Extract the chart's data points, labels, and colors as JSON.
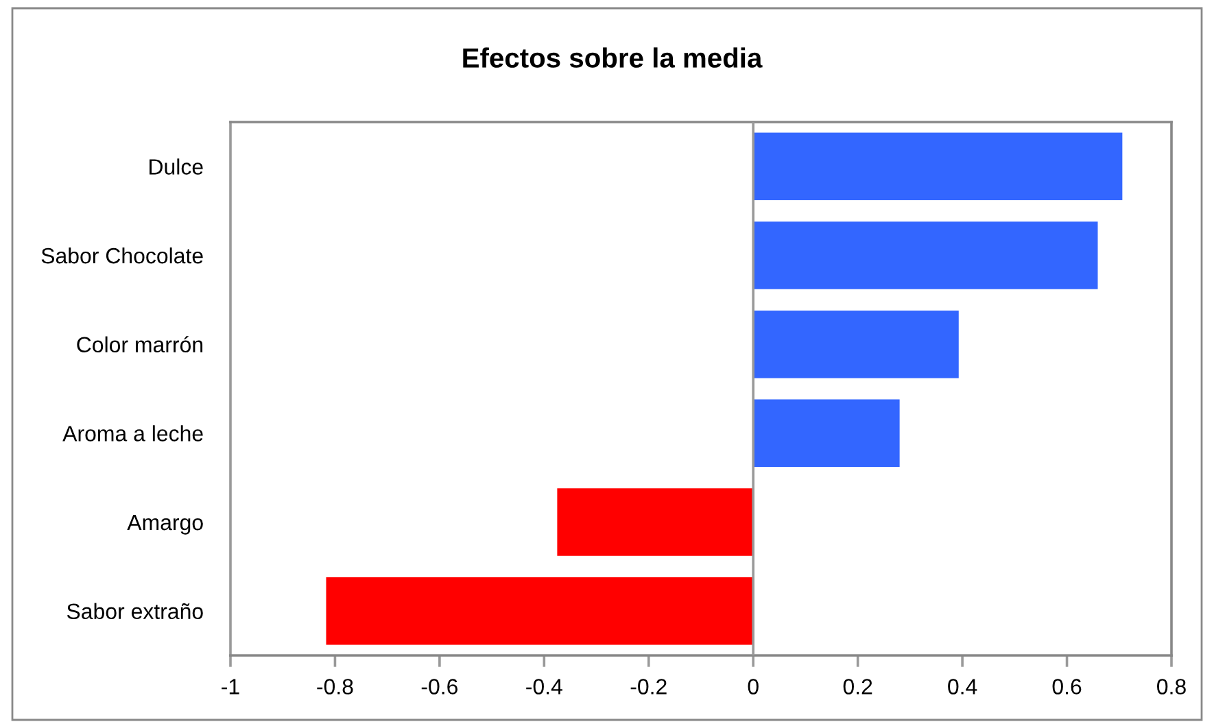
{
  "chart_data": {
    "type": "bar",
    "orientation": "horizontal",
    "title": "Efectos sobre la media",
    "categories": [
      "Dulce",
      "Sabor Chocolate",
      "Color marrón",
      "Aroma a leche",
      "Amargo",
      "Sabor extraño"
    ],
    "values": [
      0.706,
      0.659,
      0.393,
      0.28,
      -0.375,
      -0.817
    ],
    "colors": [
      "#3366ff",
      "#3366ff",
      "#3366ff",
      "#3366ff",
      "#ff0000",
      "#ff0000"
    ],
    "xlim": [
      -1,
      0.8
    ],
    "xticks": [
      -1,
      -0.8,
      -0.6,
      -0.4,
      -0.2,
      0,
      0.2,
      0.4,
      0.6,
      0.8
    ],
    "ref_lines": [
      {
        "axis": "x",
        "value": 0,
        "color": "#999999"
      }
    ],
    "grid": false,
    "legend": false
  }
}
